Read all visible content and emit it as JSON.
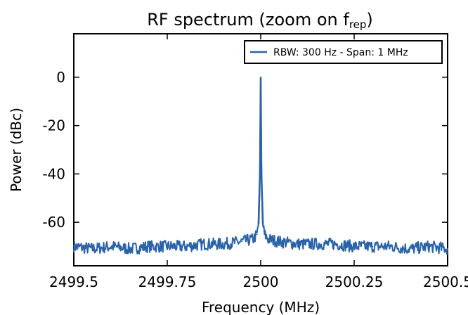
{
  "chart_data": {
    "type": "line",
    "title": "RF spectrum (zoom on f",
    "title_subscript": "rep",
    "title_suffix": ")",
    "xlabel": "Frequency (MHz)",
    "ylabel": "Power (dBc)",
    "xlim": [
      2499.5,
      2500.5
    ],
    "ylim": [
      -78,
      18
    ],
    "x_ticks": [
      2499.5,
      2499.75,
      2500,
      2500.25,
      2500.5
    ],
    "x_tick_labels": [
      "2499.5",
      "2499.75",
      "2500",
      "2500.25",
      "2500.5"
    ],
    "y_ticks": [
      0,
      -20,
      -40,
      -60
    ],
    "y_tick_labels": [
      "0",
      "-20",
      "-40",
      "-60"
    ],
    "grid": false,
    "legend_position": "top-right",
    "line_color": "#2a63a8",
    "series": [
      {
        "name": "RBW: 300 Hz - Span: 1 MHz",
        "x": [
          2499.5,
          2499.55,
          2499.6,
          2499.65,
          2499.7,
          2499.75,
          2499.8,
          2499.85,
          2499.9,
          2499.95,
          2499.98,
          2499.99,
          2499.995,
          2499.998,
          2500.0,
          2500.002,
          2500.005,
          2500.01,
          2500.02,
          2500.05,
          2500.1,
          2500.15,
          2500.2,
          2500.25,
          2500.3,
          2500.35,
          2500.4,
          2500.45,
          2500.5
        ],
        "values": [
          -70,
          -71,
          -70,
          -71,
          -70,
          -70,
          -70,
          -69,
          -69,
          -68,
          -67,
          -65,
          -60,
          -40,
          0,
          -40,
          -60,
          -65,
          -67,
          -68,
          -69,
          -69,
          -69,
          -70,
          -70,
          -70,
          -71,
          -70,
          -71
        ]
      }
    ]
  }
}
